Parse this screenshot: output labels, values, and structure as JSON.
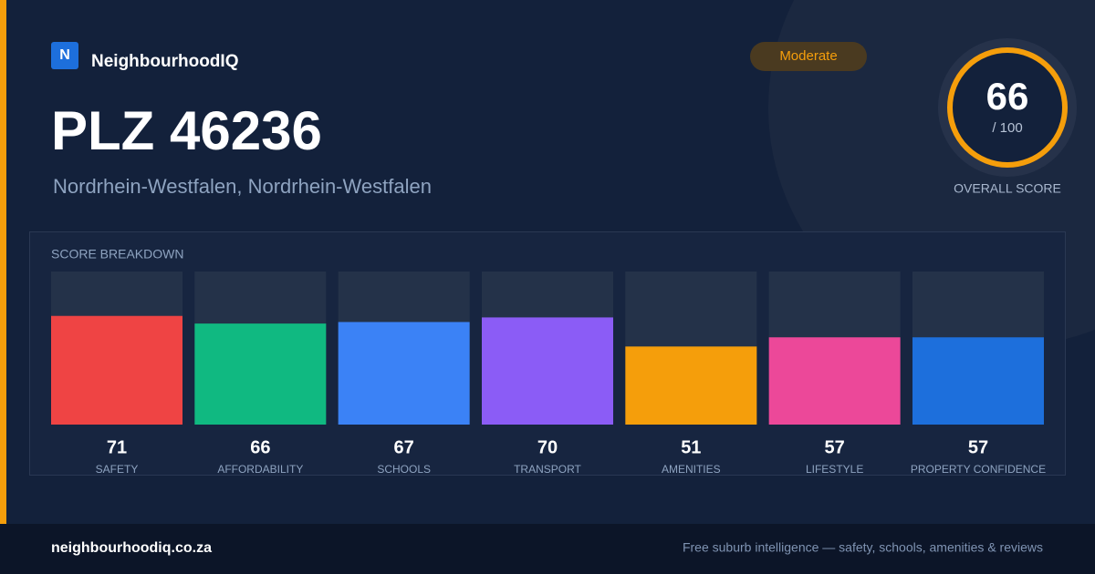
{
  "brand": {
    "logo": "N",
    "name": "NeighbourhoodIQ"
  },
  "title": "PLZ 46236",
  "subtitle": "Nordrhein-Westfalen, Nordrhein-Westfalen",
  "badge": "Moderate",
  "overall": {
    "score": 66,
    "max_label": "/ 100",
    "label": "OVERALL SCORE"
  },
  "chart_data": {
    "type": "bar",
    "title": "SCORE BREAKDOWN",
    "categories": [
      "SAFETY",
      "AFFORDABILITY",
      "SCHOOLS",
      "TRANSPORT",
      "AMENITIES",
      "LIFESTYLE",
      "PROPERTY CONFIDENCE"
    ],
    "values": [
      71,
      66,
      67,
      70,
      51,
      57,
      57
    ],
    "colors": [
      "#ef4444",
      "#10b981",
      "#3b82f6",
      "#8b5cf6",
      "#f59e0b",
      "#ec4899",
      "#1d6fdc"
    ],
    "ylim": [
      0,
      100
    ]
  },
  "footer": {
    "url": "neighbourhoodiq.co.za",
    "tagline": "Free suburb intelligence — safety, schools, amenities & reviews"
  }
}
